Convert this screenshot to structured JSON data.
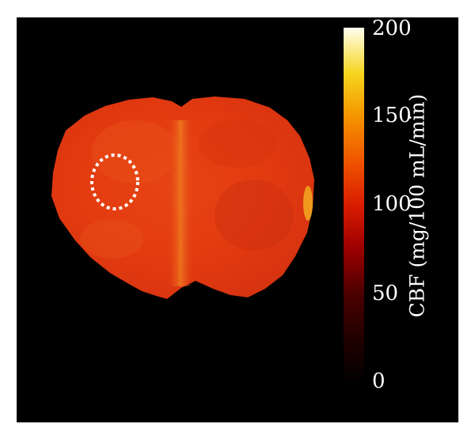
{
  "figure": {
    "colorbar": {
      "label": "CBF (mg/100 mL/min)",
      "ticks": [
        "200",
        "150",
        "100",
        "50",
        "0"
      ],
      "range": [
        0,
        200
      ],
      "colors": [
        "#000000",
        "#3a0000",
        "#a00000",
        "#e02a00",
        "#f46000",
        "#f7a000",
        "#f7dc1e",
        "#ffffe6"
      ]
    },
    "roi": {
      "shape": "dotted-ellipse",
      "color": "#ffffff"
    },
    "tissue": {
      "base_color": "#e23e12"
    }
  }
}
